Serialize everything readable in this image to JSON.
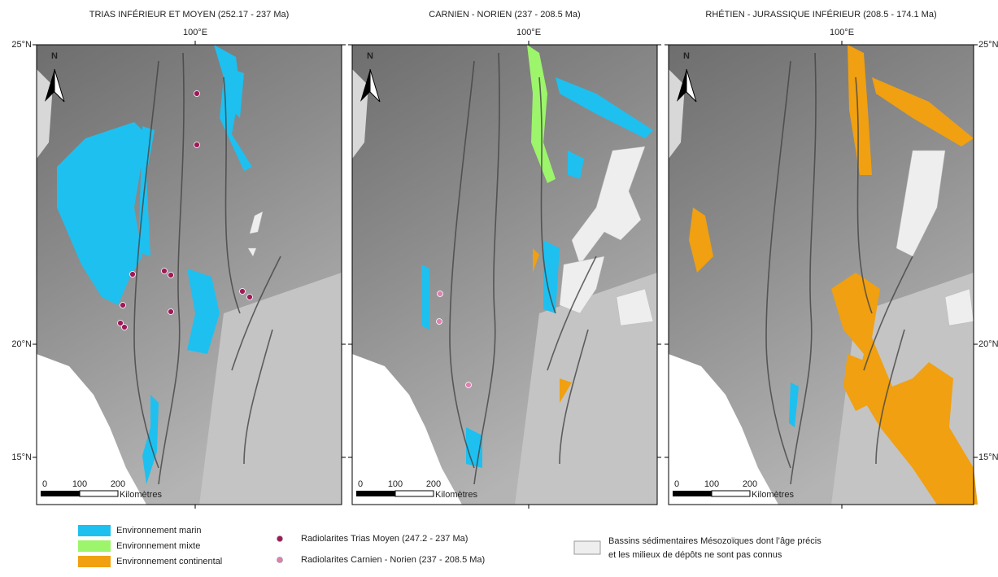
{
  "panels": [
    {
      "title": "TRIAS INFÉRIEUR ET MOYEN (252.17 - 237 Ma)"
    },
    {
      "title": "CARNIEN - NORIEN (237 - 208.5 Ma)"
    },
    {
      "title": "RHÉTIEN - JURASSIQUE INFÉRIEUR (208.5 - 174.1 Ma)"
    }
  ],
  "lat_labels": [
    "25°N",
    "20°N",
    "15°N"
  ],
  "lon_label": "100°E",
  "north": "N",
  "scale": {
    "labels": [
      "0",
      "100",
      "200"
    ],
    "unit": "Kilomètres"
  },
  "legend": {
    "environments": [
      {
        "name": "Environnement marin",
        "color": "#1ec0f0"
      },
      {
        "name": "Environnement mixte",
        "color": "#9cf56a"
      },
      {
        "name": "Environnement continental",
        "color": "#f0a010"
      }
    ],
    "radiolarites": [
      {
        "name": "Radiolarites Trias Moyen (247.2 - 237 Ma)",
        "color": "#a0185a"
      },
      {
        "name": "Radiolarites Carnien - Norien (237 - 208.5 Ma)",
        "color": "#e080b0"
      }
    ],
    "basins": {
      "lines": [
        "Bassins sédimentaires Mésozoïques dont l’âge précis",
        "et les milieux de dépôts ne sont pas connus"
      ],
      "color": "#eeeeee"
    }
  }
}
